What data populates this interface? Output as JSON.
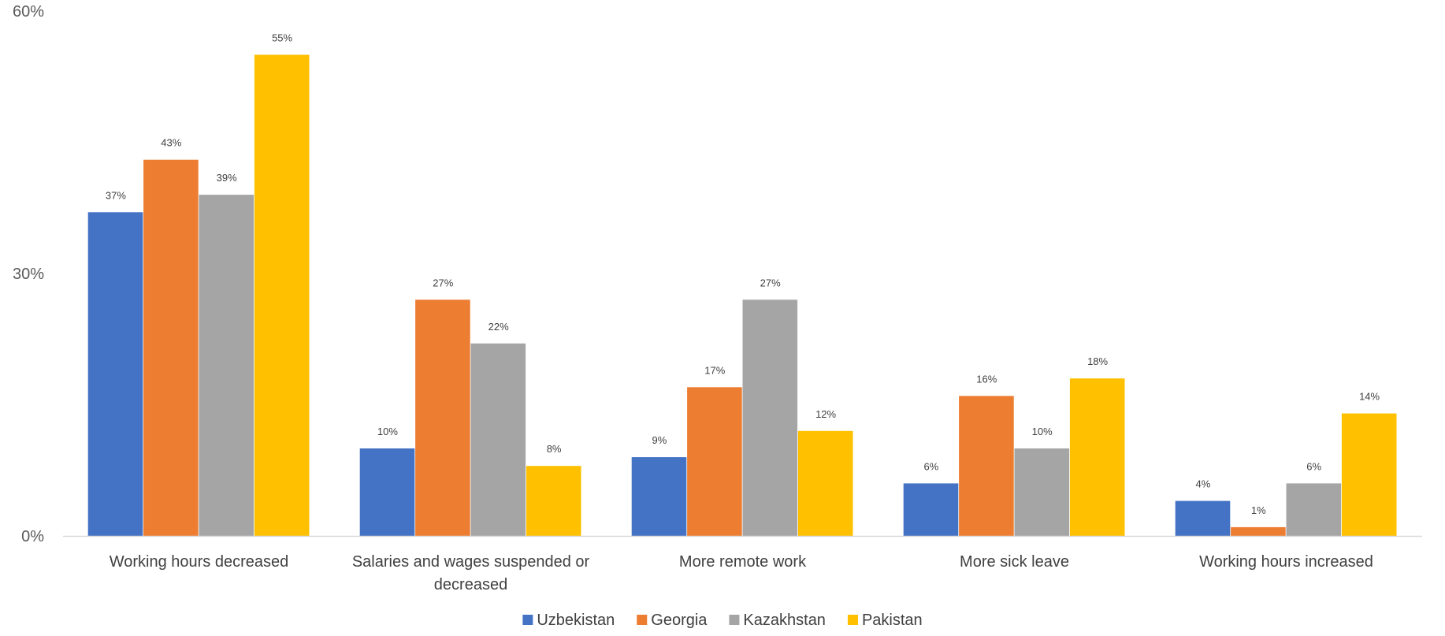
{
  "chart_data": {
    "type": "bar",
    "categories": [
      [
        "Working hours decreased"
      ],
      [
        "Salaries and wages suspended or",
        "decreased"
      ],
      [
        "More remote work"
      ],
      [
        "More sick leave"
      ],
      [
        "Working hours increased"
      ]
    ],
    "series": [
      {
        "name": "Uzbekistan",
        "color": "#4472C4",
        "values": [
          37,
          10,
          9,
          6,
          4
        ]
      },
      {
        "name": "Georgia",
        "color": "#ED7D31",
        "values": [
          43,
          27,
          17,
          16,
          1
        ]
      },
      {
        "name": "Kazakhstan",
        "color": "#A5A5A5",
        "values": [
          39,
          22,
          27,
          10,
          6
        ]
      },
      {
        "name": "Pakistan",
        "color": "#FFC000",
        "values": [
          55,
          8,
          12,
          18,
          14
        ]
      }
    ],
    "y_ticks": [
      "0%",
      "30%",
      "60%"
    ],
    "ylim": [
      0,
      60
    ],
    "value_suffix": "%",
    "grid": false,
    "legend_position": "bottom"
  }
}
